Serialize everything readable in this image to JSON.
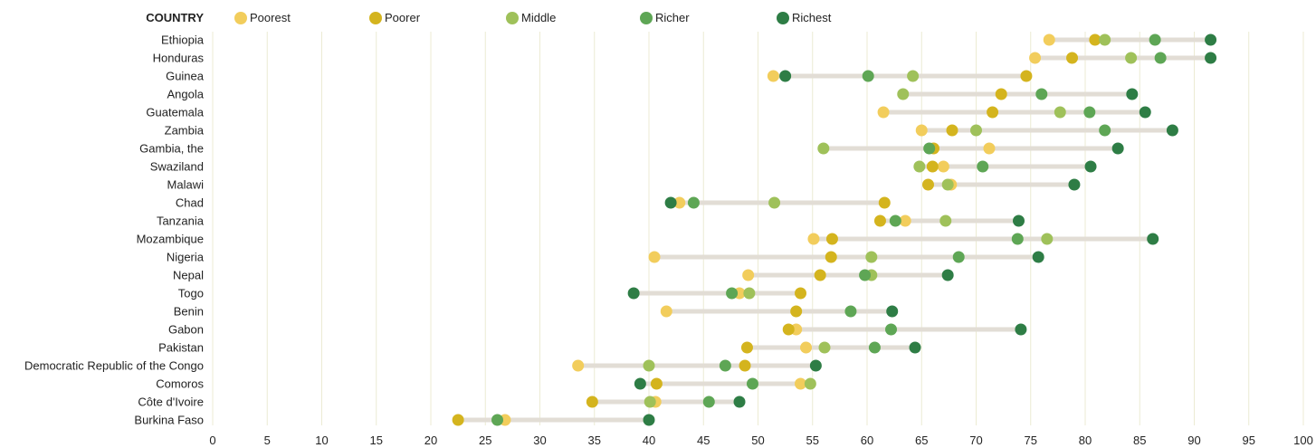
{
  "chart_data": {
    "type": "scatter",
    "header": "COUNTRY",
    "xlim": [
      0,
      100
    ],
    "xticks": [
      0,
      5,
      10,
      15,
      20,
      25,
      30,
      35,
      40,
      45,
      50,
      55,
      60,
      65,
      70,
      75,
      80,
      85,
      90,
      95,
      100
    ],
    "series": [
      {
        "name": "Poorest",
        "color": "#f2cd5c"
      },
      {
        "name": "Poorer",
        "color": "#d4b41e"
      },
      {
        "name": "Middle",
        "color": "#9fc15a"
      },
      {
        "name": "Richer",
        "color": "#5ea655"
      },
      {
        "name": "Richest",
        "color": "#2e7d45"
      }
    ],
    "categories": [
      "Ethiopia",
      "Honduras",
      "Guinea",
      "Angola",
      "Guatemala",
      "Zambia",
      "Gambia, the",
      "Swaziland",
      "Malawi",
      "Chad",
      "Tanzania",
      "Mozambique",
      "Nigeria",
      "Nepal",
      "Togo",
      "Benin",
      "Gabon",
      "Pakistan",
      "Democratic Republic of the Congo",
      "Comoros",
      "Côte d'Ivoire",
      "Burkina Faso"
    ],
    "values": [
      [
        76.7,
        80.9,
        81.8,
        86.4,
        91.5
      ],
      [
        75.4,
        78.8,
        84.2,
        86.9,
        91.5
      ],
      [
        51.4,
        74.6,
        64.2,
        60.1,
        52.5
      ],
      [
        null,
        72.3,
        63.3,
        76.0,
        84.3
      ],
      [
        61.5,
        71.5,
        77.7,
        80.4,
        85.5
      ],
      [
        65.0,
        67.8,
        70.0,
        81.8,
        88.0
      ],
      [
        71.2,
        66.1,
        56.0,
        65.7,
        83.0
      ],
      [
        67.0,
        66.0,
        64.8,
        70.6,
        80.5
      ],
      [
        67.7,
        65.6,
        67.4,
        null,
        79.0
      ],
      [
        42.8,
        61.6,
        51.5,
        44.1,
        42.0
      ],
      [
        63.5,
        61.2,
        67.2,
        62.6,
        73.9
      ],
      [
        55.1,
        56.8,
        76.5,
        73.8,
        86.2
      ],
      [
        40.5,
        56.7,
        60.4,
        68.4,
        75.7
      ],
      [
        49.1,
        55.7,
        60.4,
        59.8,
        67.4
      ],
      [
        48.3,
        53.9,
        49.2,
        47.6,
        38.6
      ],
      [
        41.6,
        53.5,
        null,
        58.5,
        62.3
      ],
      [
        53.5,
        52.8,
        null,
        62.2,
        74.1
      ],
      [
        54.4,
        49.0,
        56.1,
        60.7,
        64.4
      ],
      [
        33.5,
        48.8,
        40.0,
        47.0,
        55.3
      ],
      [
        53.9,
        40.7,
        54.8,
        49.5,
        39.2
      ],
      [
        40.6,
        34.8,
        40.1,
        45.5,
        48.3
      ],
      [
        26.8,
        22.5,
        null,
        26.1,
        40.0
      ]
    ]
  }
}
